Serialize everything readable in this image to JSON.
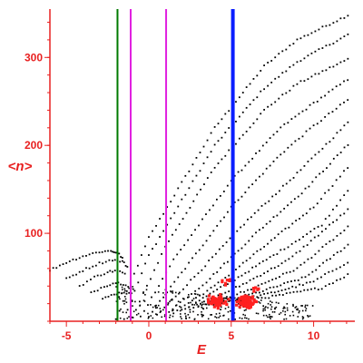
{
  "chart_data": {
    "type": "scatter",
    "title": "",
    "xlabel": "E",
    "ylabel": "<n>",
    "xlim": [
      -6,
      12.5
    ],
    "ylim": [
      0,
      355
    ],
    "x_ticks": [
      -5,
      0,
      5,
      10
    ],
    "y_ticks": [
      100,
      200,
      300
    ],
    "grid": false,
    "legend": "none",
    "colors": {
      "axis": "#e82020",
      "points": "#000000",
      "highlight_points": "#ff2020",
      "green_line": "#007a00",
      "magenta_line": "#e020e0",
      "blue_line": "#0a1eff"
    },
    "vertical_lines": [
      {
        "x": -1.9,
        "color": "#007a00"
      },
      {
        "x": -1.1,
        "color": "#e020e0"
      },
      {
        "x": 1.05,
        "color": "#e020e0"
      },
      {
        "x": 5.1,
        "color": "#0a1eff"
      }
    ],
    "series": [
      {
        "kind": "line-of-points",
        "points": [
          [
            -2.0,
            2
          ],
          [
            0,
            95
          ],
          [
            4,
            220
          ],
          [
            7,
            290
          ],
          [
            9,
            320
          ],
          [
            12.3,
            350
          ]
        ]
      },
      {
        "kind": "line-of-points",
        "points": [
          [
            -1.5,
            3
          ],
          [
            0,
            75
          ],
          [
            4,
            200
          ],
          [
            7,
            265
          ],
          [
            9,
            295
          ],
          [
            12.3,
            328
          ]
        ]
      },
      {
        "kind": "line-of-points",
        "points": [
          [
            -1.0,
            4
          ],
          [
            1,
            85
          ],
          [
            4,
            175
          ],
          [
            7,
            240
          ],
          [
            9,
            270
          ],
          [
            12.3,
            300
          ]
        ]
      },
      {
        "kind": "line-of-points",
        "points": [
          [
            -0.5,
            5
          ],
          [
            1.5,
            70
          ],
          [
            5,
            160
          ],
          [
            8,
            220
          ],
          [
            10,
            248
          ],
          [
            12.3,
            278
          ]
        ]
      },
      {
        "kind": "line-of-points",
        "points": [
          [
            0,
            6
          ],
          [
            2,
            55
          ],
          [
            5,
            130
          ],
          [
            8,
            190
          ],
          [
            10,
            222
          ],
          [
            12.3,
            255
          ]
        ]
      },
      {
        "kind": "line-of-points",
        "points": [
          [
            0.5,
            7
          ],
          [
            3,
            55
          ],
          [
            6,
            115
          ],
          [
            9,
            168
          ],
          [
            12.3,
            230
          ]
        ]
      },
      {
        "kind": "line-of-points",
        "points": [
          [
            1.0,
            8
          ],
          [
            3.5,
            45
          ],
          [
            6.5,
            100
          ],
          [
            9.5,
            150
          ],
          [
            12.3,
            205
          ]
        ]
      },
      {
        "kind": "line-of-points",
        "points": [
          [
            1.5,
            10
          ],
          [
            4,
            40
          ],
          [
            7,
            85
          ],
          [
            10,
            130
          ],
          [
            12.3,
            180
          ]
        ]
      },
      {
        "kind": "line-of-points",
        "points": [
          [
            2.0,
            12
          ],
          [
            5,
            45
          ],
          [
            8,
            80
          ],
          [
            10.5,
            110
          ],
          [
            12.3,
            155
          ]
        ]
      },
      {
        "kind": "line-of-points",
        "points": [
          [
            2.5,
            14
          ],
          [
            5.5,
            40
          ],
          [
            8.5,
            70
          ],
          [
            12.3,
            130
          ]
        ]
      },
      {
        "kind": "line-of-points",
        "points": [
          [
            3.0,
            16
          ],
          [
            6,
            35
          ],
          [
            9,
            60
          ],
          [
            12.3,
            110
          ]
        ]
      },
      {
        "kind": "line-of-points",
        "points": [
          [
            3.5,
            18
          ],
          [
            6.5,
            32
          ],
          [
            9.5,
            50
          ],
          [
            12.3,
            90
          ]
        ]
      },
      {
        "kind": "line-of-points",
        "points": [
          [
            4.0,
            20
          ],
          [
            7,
            30
          ],
          [
            10,
            45
          ],
          [
            12.3,
            70
          ]
        ]
      },
      {
        "kind": "line-of-points",
        "points": [
          [
            4.5,
            22
          ],
          [
            7.5,
            28
          ],
          [
            10.5,
            38
          ],
          [
            12.3,
            55
          ]
        ]
      },
      {
        "kind": "line-of-points",
        "points": [
          [
            -6,
            58
          ],
          [
            -5,
            67
          ],
          [
            -4,
            74
          ],
          [
            -3,
            79
          ],
          [
            -2.3,
            80
          ],
          [
            -1.9,
            78
          ],
          [
            -1.5,
            70
          ]
        ]
      },
      {
        "kind": "line-of-points",
        "points": [
          [
            -5,
            48
          ],
          [
            -4,
            58
          ],
          [
            -3,
            66
          ],
          [
            -2.2,
            70
          ],
          [
            -1.6,
            68
          ],
          [
            -1.2,
            60
          ]
        ]
      },
      {
        "kind": "line-of-points",
        "points": [
          [
            -4.2,
            40
          ],
          [
            -3.3,
            50
          ],
          [
            -2.5,
            56
          ],
          [
            -1.9,
            58
          ],
          [
            -1.3,
            52
          ]
        ]
      },
      {
        "kind": "line-of-points",
        "points": [
          [
            -3.5,
            32
          ],
          [
            -2.7,
            40
          ],
          [
            -2.0,
            44
          ],
          [
            -1.4,
            42
          ],
          [
            -0.8,
            35
          ]
        ]
      },
      {
        "kind": "line-of-points",
        "points": [
          [
            -2.8,
            25
          ],
          [
            -2.1,
            31
          ],
          [
            -1.5,
            33
          ],
          [
            -0.9,
            30
          ]
        ]
      }
    ],
    "red_clusters": [
      {
        "center": [
          4.2,
          22
        ],
        "spread": [
          0.8,
          10
        ],
        "count": 70
      },
      {
        "center": [
          5.9,
          22
        ],
        "spread": [
          0.8,
          10
        ],
        "count": 80
      },
      {
        "center": [
          4.8,
          45
        ],
        "spread": [
          0.5,
          8
        ],
        "count": 8
      },
      {
        "center": [
          6.5,
          35
        ],
        "spread": [
          0.3,
          5
        ],
        "count": 6
      }
    ]
  }
}
